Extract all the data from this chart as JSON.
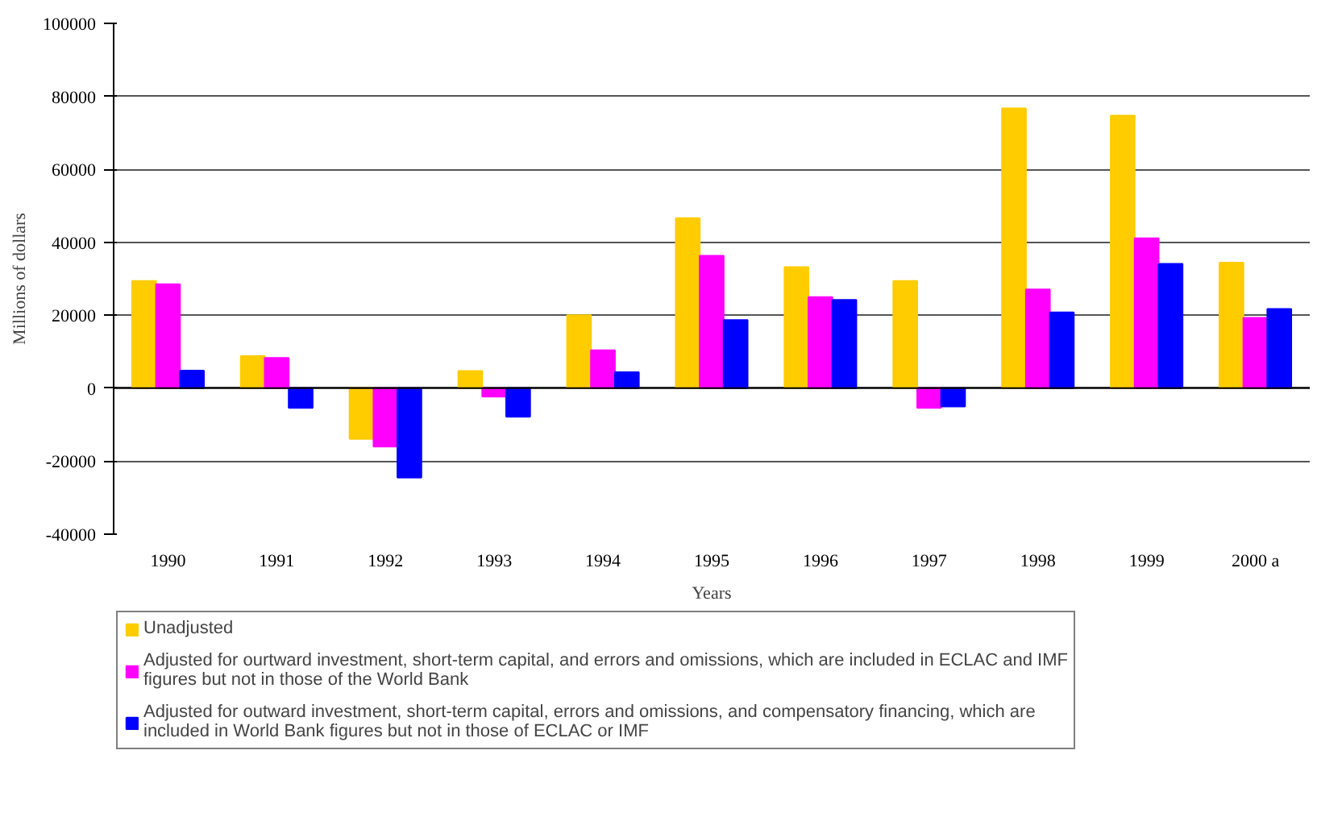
{
  "chart_data": {
    "type": "bar",
    "xlabel": "Years",
    "ylabel": "Millions of dollars",
    "categories": [
      "1990",
      "1991",
      "1992",
      "1993",
      "1994",
      "1995",
      "1996",
      "1997",
      "1998",
      "1999",
      "2000 a"
    ],
    "series": [
      {
        "name": "Unadjusted",
        "color": "#ffcc00",
        "values": [
          29400,
          8800,
          -13900,
          4700,
          20000,
          46600,
          33200,
          29400,
          76700,
          74700,
          34400
        ]
      },
      {
        "name": "Adjusted for ourtward investment, short-term capital, and errors and omissions, which are included in ECLAC and IMF figures but not in those of the World Bank",
        "color": "#ff00ff",
        "values": [
          28500,
          8300,
          -16000,
          -2300,
          10400,
          36300,
          25000,
          -5400,
          27100,
          41100,
          19300
        ]
      },
      {
        "name": "Adjusted for outward investment, short-term capital, errors and omissions, and compensatory financing, which are included in World Bank figures but not in those of ECLAC or IMF",
        "color": "#0000ff",
        "values": [
          4800,
          -5400,
          -24500,
          -7800,
          4400,
          18700,
          24200,
          -5000,
          20800,
          34100,
          21700
        ]
      }
    ],
    "ylim": [
      -40000,
      100000
    ],
    "yticks": [
      -40000,
      -20000,
      0,
      20000,
      40000,
      60000,
      80000,
      100000
    ],
    "grid": "y",
    "legend": "bottom"
  }
}
